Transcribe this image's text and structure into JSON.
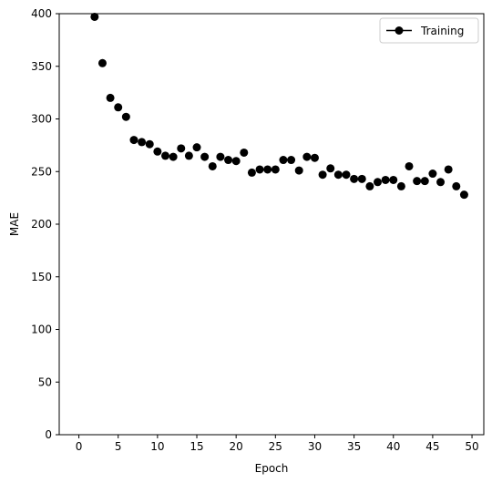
{
  "chart_data": {
    "type": "line",
    "marker_only": true,
    "xlabel": "Epoch",
    "ylabel": "MAE",
    "xlim": [
      -2.5,
      51.5
    ],
    "ylim": [
      0,
      400
    ],
    "xticks": [
      0,
      5,
      10,
      15,
      20,
      25,
      30,
      35,
      40,
      45,
      50
    ],
    "yticks": [
      0,
      50,
      100,
      150,
      200,
      250,
      300,
      350,
      400
    ],
    "grid": false,
    "legend_placement": "top-right",
    "series": [
      {
        "name": "Training",
        "color": "#000000",
        "marker": "circle",
        "x": [
          2,
          3,
          4,
          5,
          6,
          7,
          8,
          9,
          10,
          11,
          12,
          13,
          14,
          15,
          16,
          17,
          18,
          19,
          20,
          21,
          22,
          23,
          24,
          25,
          26,
          27,
          28,
          29,
          30,
          31,
          32,
          33,
          34,
          35,
          36,
          37,
          38,
          39,
          40,
          41,
          42,
          43,
          44,
          45,
          46,
          47,
          48,
          49
        ],
        "y": [
          397,
          353,
          320,
          311,
          302,
          280,
          278,
          276,
          269,
          265,
          264,
          272,
          265,
          273,
          264,
          255,
          264,
          261,
          260,
          268,
          249,
          252,
          252,
          252,
          261,
          261,
          251,
          264,
          263,
          247,
          253,
          247,
          247,
          243,
          243,
          236,
          240,
          242,
          242,
          236,
          255,
          241,
          241,
          248,
          240,
          252,
          236,
          228
        ]
      }
    ]
  }
}
